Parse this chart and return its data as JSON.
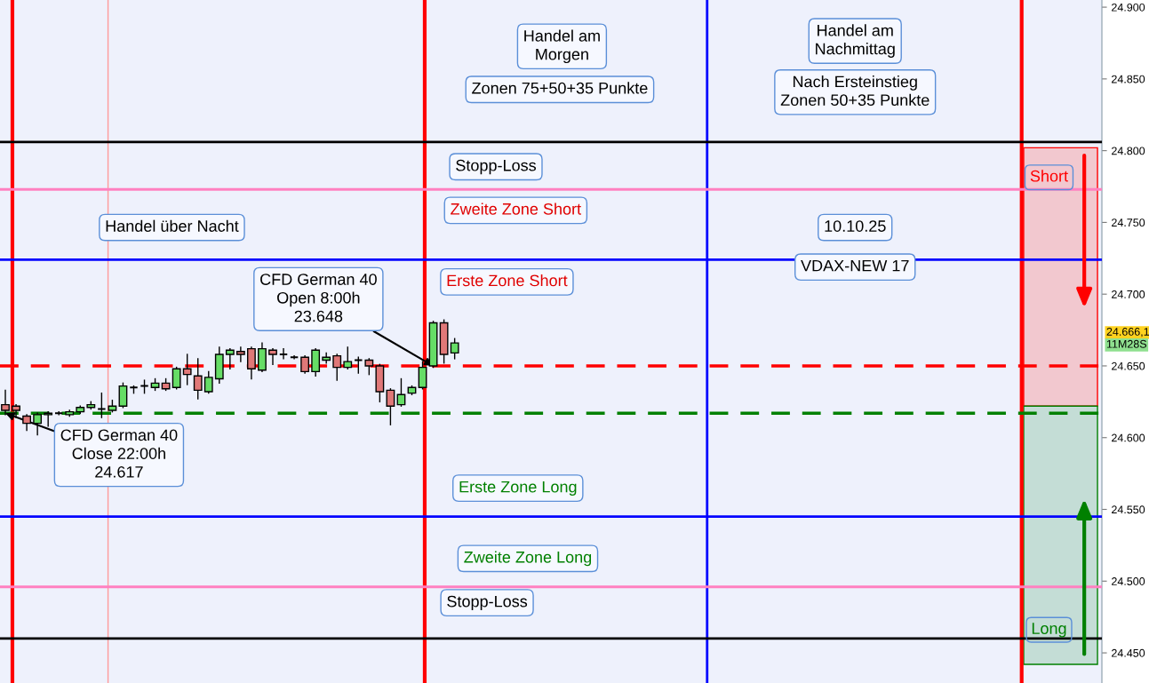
{
  "chart_data": {
    "type": "candlestick",
    "categories": [
      null,
      null,
      null,
      null,
      null,
      null,
      null,
      null,
      null,
      null,
      null,
      null,
      null,
      null,
      null,
      null,
      null,
      null,
      null,
      null,
      null,
      null,
      null,
      null,
      null,
      null,
      null,
      null,
      null,
      null,
      null,
      null,
      null,
      null,
      null,
      null,
      null,
      null,
      null,
      null,
      null,
      null,
      null,
      null,
      null,
      null,
      null,
      null,
      null,
      null,
      null,
      null,
      null,
      null,
      null,
      null,
      null,
      null,
      null,
      null,
      null,
      null,
      null,
      null,
      null,
      null,
      null,
      null,
      null,
      null,
      null,
      null,
      null,
      null,
      null,
      null,
      null,
      null,
      null,
      null,
      null,
      null,
      null,
      null,
      null,
      null,
      null,
      null,
      null,
      null,
      null,
      null,
      null,
      null,
      null,
      null,
      null,
      null,
      null,
      null,
      null,
      null,
      null
    ],
    "ohlc": [
      [
        24623,
        24633,
        24616,
        24619
      ],
      [
        24622,
        24623,
        24614,
        24619
      ],
      [
        24615,
        24616,
        24605,
        24610
      ],
      [
        24610,
        24617,
        24602,
        24616
      ],
      [
        24616,
        24618,
        24608,
        24617
      ],
      [
        24617,
        24618,
        24616,
        24617
      ],
      [
        24616,
        24619,
        24615,
        24618
      ],
      [
        24618,
        24622,
        24617,
        24621
      ],
      [
        24621,
        24625,
        24620,
        24623
      ],
      [
        24620,
        24631,
        24614,
        24620
      ],
      [
        24619,
        24626,
        24618,
        24622
      ],
      [
        24622,
        24638,
        24621,
        24636
      ],
      [
        24635,
        24636,
        24631,
        24635
      ],
      [
        24636,
        24640,
        24631,
        24636
      ],
      [
        24635,
        24641,
        24633,
        24638
      ],
      [
        24638,
        24641,
        24633,
        24634
      ],
      [
        24635,
        24649,
        24634,
        24648
      ],
      [
        24648,
        24658,
        24637,
        24644
      ],
      [
        24643,
        24655,
        24627,
        24633
      ],
      [
        24632,
        24646,
        24631,
        24642
      ],
      [
        24641,
        24663,
        24638,
        24658
      ],
      [
        24658,
        24662,
        24648,
        24661
      ],
      [
        24660,
        24663,
        24653,
        24658
      ],
      [
        24662,
        24663,
        24641,
        24648
      ],
      [
        24647,
        24666,
        24646,
        24662
      ],
      [
        24661,
        24662,
        24651,
        24658
      ],
      [
        24658,
        24662,
        24655,
        24658
      ],
      [
        24656,
        24657,
        24655,
        24656
      ],
      [
        24656,
        24657,
        24645,
        24646
      ],
      [
        24646,
        24662,
        24643,
        24661
      ],
      [
        24654,
        24659,
        24652,
        24656
      ],
      [
        24657,
        24658,
        24640,
        24649
      ],
      [
        24649,
        24663,
        24648,
        24653
      ],
      [
        24654,
        24656,
        24645,
        24654
      ],
      [
        24654,
        24655,
        24644,
        24650
      ],
      [
        24650,
        24651,
        24625,
        24632
      ],
      [
        24633,
        24634,
        24609,
        24622
      ],
      [
        24623,
        24641,
        24622,
        24630
      ],
      [
        24631,
        24636,
        24630,
        24635
      ],
      [
        24635,
        24653,
        24634,
        24649
      ],
      [
        24650,
        24681,
        24649,
        24680
      ],
      [
        24680,
        24682,
        24652,
        24658
      ],
      [
        24659,
        24669,
        24655,
        24666
      ],
      null,
      null,
      null,
      null,
      null,
      null,
      null,
      null,
      null,
      null,
      null,
      null,
      null,
      null,
      null,
      null,
      null,
      null,
      null,
      null,
      null,
      null,
      null,
      null,
      null,
      null,
      null,
      null,
      null,
      null,
      null,
      null,
      null,
      null,
      null,
      null,
      null,
      null,
      null,
      null,
      null,
      null,
      null,
      null,
      null,
      null,
      null,
      null,
      null,
      null,
      null,
      null,
      null,
      null,
      null,
      null,
      null,
      null,
      null,
      null
    ],
    "ylim": [
      24429,
      24905
    ],
    "yticks": [
      {
        "value": 24450,
        "label": "24.450"
      },
      {
        "value": 24500,
        "label": "24.500"
      },
      {
        "value": 24550,
        "label": "24.550"
      },
      {
        "value": 24600,
        "label": "24.600"
      },
      {
        "value": 24650,
        "label": "24.650"
      },
      {
        "value": 24700,
        "label": "24.700"
      },
      {
        "value": 24750,
        "label": "24.750"
      },
      {
        "value": 24800,
        "label": "24.800"
      },
      {
        "value": 24850,
        "label": "24.850"
      },
      {
        "value": 24900,
        "label": "24.900"
      }
    ],
    "tick_labels": "y",
    "grid": false,
    "legend": false,
    "ref_lines": [
      {
        "axis": "y",
        "value": 24806,
        "label": "Stopp-Loss",
        "color": "#000000"
      },
      {
        "axis": "y",
        "value": 24773,
        "label": "Zweite Zone Short",
        "color": "#ff80c0"
      },
      {
        "axis": "y",
        "value": 24724,
        "label": "Erste Zone Short",
        "color": "#0000ff"
      },
      {
        "axis": "y",
        "value": 24650,
        "color": "#ff0000",
        "line_style": "dashed"
      },
      {
        "axis": "y",
        "value": 24617,
        "color": "#008000",
        "line_style": "dashed"
      },
      {
        "axis": "y",
        "value": 24545,
        "label": "Erste Zone Long",
        "color": "#0000ff"
      },
      {
        "axis": "y",
        "value": 24496,
        "label": "Zweite Zone Long",
        "color": "#ff80c0"
      },
      {
        "axis": "y",
        "value": 24460,
        "label": "Stopp-Loss",
        "color": "#000000"
      }
    ],
    "bands": [
      {
        "axis": "y",
        "from": 24622,
        "to": 24802,
        "label": "Short",
        "color": "#f2c8cf"
      },
      {
        "axis": "y",
        "from": 24442,
        "to": 24622,
        "label": "Long",
        "color": "#c4ddd6"
      }
    ],
    "annotations": [
      "Handel über Nacht",
      "Handel am\nMorgen",
      "Zonen 75+50+35 Punkte",
      "Handel am\nNachmittag",
      "Nach Ersteinstieg\nZonen 50+35 Punkte",
      "10.10.25",
      "VDAX-NEW 17",
      {
        "text": "CFD German 40\nOpen 8:00h\n23.648",
        "y": 24650
      },
      {
        "text": "CFD German 40\nClose 22:00h\n24.617",
        "y": 24617
      },
      "24.666,1",
      "11M28S"
    ]
  }
}
